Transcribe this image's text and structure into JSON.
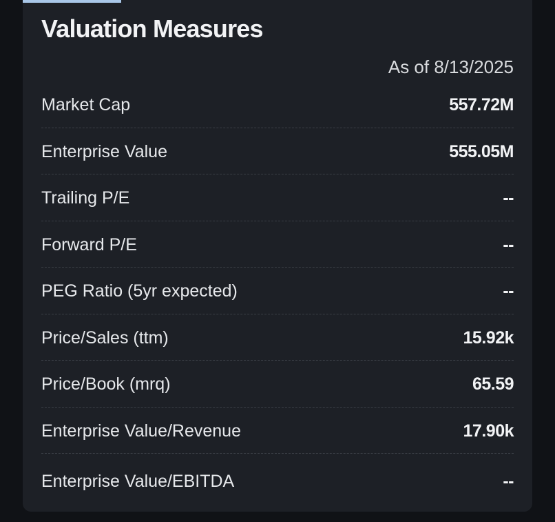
{
  "panel": {
    "title": "Valuation Measures",
    "as_of": "As of 8/13/2025"
  },
  "rows": [
    {
      "label": "Market Cap",
      "value": "557.72M"
    },
    {
      "label": "Enterprise Value",
      "value": "555.05M"
    },
    {
      "label": "Trailing P/E",
      "value": "--"
    },
    {
      "label": "Forward P/E",
      "value": "--"
    },
    {
      "label": "PEG Ratio (5yr expected)",
      "value": "--"
    },
    {
      "label": "Price/Sales (ttm)",
      "value": "15.92k"
    },
    {
      "label": "Price/Book (mrq)",
      "value": "65.59"
    },
    {
      "label": "Enterprise Value/Revenue",
      "value": "17.90k"
    },
    {
      "label": "Enterprise Value/EBITDA",
      "value": "--"
    }
  ]
}
